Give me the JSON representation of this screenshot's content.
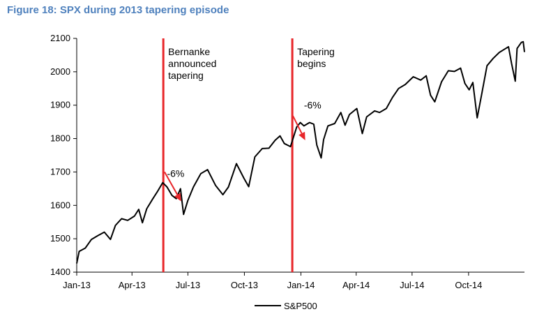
{
  "figure_title": "Figure 18: SPX during 2013 tapering episode",
  "chart_data": {
    "type": "line",
    "title": "Figure 18: SPX during 2013 tapering episode",
    "xlabel": "",
    "ylabel": "",
    "x_range": [
      "2013-01-01",
      "2014-12-31"
    ],
    "ylim": [
      1400,
      2100
    ],
    "y_ticks": [
      1400,
      1500,
      1600,
      1700,
      1800,
      1900,
      2000,
      2100
    ],
    "x_ticks": [
      {
        "date": "2013-01-01",
        "label": "Jan-13"
      },
      {
        "date": "2013-04-01",
        "label": "Apr-13"
      },
      {
        "date": "2013-07-01",
        "label": "Jul-13"
      },
      {
        "date": "2013-10-01",
        "label": "Oct-13"
      },
      {
        "date": "2014-01-01",
        "label": "Jan-14"
      },
      {
        "date": "2014-04-01",
        "label": "Apr-14"
      },
      {
        "date": "2014-07-01",
        "label": "Jul-14"
      },
      {
        "date": "2014-10-01",
        "label": "Oct-14"
      }
    ],
    "grid": false,
    "legend_position": "bottom-center",
    "series": [
      {
        "name": "S&P500",
        "color": "#000000",
        "points": [
          [
            "2013-01-01",
            1426
          ],
          [
            "2013-01-05",
            1462
          ],
          [
            "2013-01-15",
            1472
          ],
          [
            "2013-01-25",
            1498
          ],
          [
            "2013-02-05",
            1510
          ],
          [
            "2013-02-15",
            1520
          ],
          [
            "2013-02-25",
            1498
          ],
          [
            "2013-03-05",
            1540
          ],
          [
            "2013-03-15",
            1560
          ],
          [
            "2013-03-25",
            1555
          ],
          [
            "2013-04-05",
            1568
          ],
          [
            "2013-04-12",
            1588
          ],
          [
            "2013-04-18",
            1548
          ],
          [
            "2013-04-25",
            1590
          ],
          [
            "2013-05-05",
            1620
          ],
          [
            "2013-05-12",
            1640
          ],
          [
            "2013-05-21",
            1668
          ],
          [
            "2013-05-28",
            1655
          ],
          [
            "2013-06-05",
            1630
          ],
          [
            "2013-06-12",
            1620
          ],
          [
            "2013-06-19",
            1650
          ],
          [
            "2013-06-24",
            1573
          ],
          [
            "2013-07-01",
            1615
          ],
          [
            "2013-07-10",
            1655
          ],
          [
            "2013-07-22",
            1695
          ],
          [
            "2013-08-02",
            1707
          ],
          [
            "2013-08-15",
            1660
          ],
          [
            "2013-08-27",
            1632
          ],
          [
            "2013-09-05",
            1655
          ],
          [
            "2013-09-18",
            1725
          ],
          [
            "2013-09-30",
            1682
          ],
          [
            "2013-10-08",
            1656
          ],
          [
            "2013-10-18",
            1745
          ],
          [
            "2013-10-30",
            1770
          ],
          [
            "2013-11-10",
            1771
          ],
          [
            "2013-11-20",
            1795
          ],
          [
            "2013-11-28",
            1808
          ],
          [
            "2013-12-05",
            1785
          ],
          [
            "2013-12-15",
            1776
          ],
          [
            "2013-12-25",
            1834
          ],
          [
            "2013-12-31",
            1848
          ],
          [
            "2014-01-06",
            1838
          ],
          [
            "2014-01-15",
            1848
          ],
          [
            "2014-01-22",
            1843
          ],
          [
            "2014-01-27",
            1780
          ],
          [
            "2014-02-03",
            1742
          ],
          [
            "2014-02-07",
            1797
          ],
          [
            "2014-02-14",
            1838
          ],
          [
            "2014-02-25",
            1845
          ],
          [
            "2014-03-07",
            1878
          ],
          [
            "2014-03-14",
            1840
          ],
          [
            "2014-03-21",
            1872
          ],
          [
            "2014-04-02",
            1890
          ],
          [
            "2014-04-11",
            1815
          ],
          [
            "2014-04-18",
            1865
          ],
          [
            "2014-05-01",
            1883
          ],
          [
            "2014-05-09",
            1878
          ],
          [
            "2014-05-20",
            1890
          ],
          [
            "2014-05-30",
            1923
          ],
          [
            "2014-06-09",
            1950
          ],
          [
            "2014-06-20",
            1962
          ],
          [
            "2014-07-03",
            1985
          ],
          [
            "2014-07-15",
            1975
          ],
          [
            "2014-07-24",
            1988
          ],
          [
            "2014-07-31",
            1930
          ],
          [
            "2014-08-07",
            1910
          ],
          [
            "2014-08-18",
            1970
          ],
          [
            "2014-08-29",
            2003
          ],
          [
            "2014-09-08",
            2001
          ],
          [
            "2014-09-18",
            2011
          ],
          [
            "2014-09-25",
            1965
          ],
          [
            "2014-10-02",
            1946
          ],
          [
            "2014-10-08",
            1968
          ],
          [
            "2014-10-15",
            1862
          ],
          [
            "2014-10-22",
            1930
          ],
          [
            "2014-10-31",
            2018
          ],
          [
            "2014-11-10",
            2040
          ],
          [
            "2014-11-20",
            2058
          ],
          [
            "2014-11-28",
            2067
          ],
          [
            "2014-12-05",
            2075
          ],
          [
            "2014-12-10",
            2025
          ],
          [
            "2014-12-16",
            1972
          ],
          [
            "2014-12-19",
            2070
          ],
          [
            "2014-12-26",
            2088
          ],
          [
            "2014-12-29",
            2090
          ],
          [
            "2014-12-31",
            2059
          ]
        ]
      }
    ],
    "events": [
      {
        "date": "2013-05-22",
        "label": [
          "Bernanke",
          "announced",
          "tapering"
        ],
        "color": "#e8262a"
      },
      {
        "date": "2013-12-18",
        "label": [
          "Tapering",
          "begins"
        ],
        "color": "#e8262a"
      }
    ],
    "annotations": [
      {
        "text": "-6%",
        "text_at": [
          "2013-05-28",
          1685
        ],
        "arrow_from": [
          "2013-05-24",
          1700
        ],
        "arrow_to": [
          "2013-06-20",
          1612
        ],
        "color": "#e8262a"
      },
      {
        "text": "-6%",
        "text_at": [
          "2014-01-06",
          1890
        ],
        "arrow_from": [
          "2013-12-19",
          1868
        ],
        "arrow_to": [
          "2014-01-08",
          1795
        ],
        "color": "#e8262a"
      }
    ]
  }
}
